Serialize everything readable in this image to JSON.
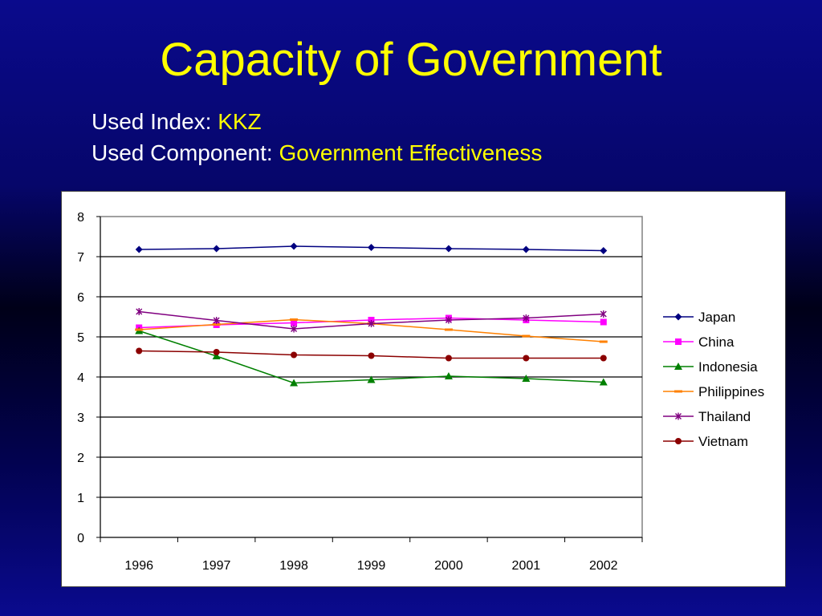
{
  "slide": {
    "title": "Capacity of Government",
    "index_label": "Used Index: ",
    "index_value": "KKZ",
    "component_label": "Used Component: ",
    "component_value": "Government Effectiveness"
  },
  "chart_data": {
    "type": "line",
    "title": "",
    "xlabel": "",
    "ylabel": "",
    "categories": [
      "1996",
      "1997",
      "1998",
      "1999",
      "2000",
      "2001",
      "2002"
    ],
    "ylim": [
      0,
      8
    ],
    "yticks": [
      0,
      1,
      2,
      3,
      4,
      5,
      6,
      7,
      8
    ],
    "grid": true,
    "legend_position": "right",
    "series": [
      {
        "name": "Japan",
        "color": "#000080",
        "marker": "diamond",
        "values": [
          7.18,
          7.2,
          7.26,
          7.23,
          7.2,
          7.18,
          7.15
        ]
      },
      {
        "name": "China",
        "color": "#ff00ff",
        "marker": "square",
        "values": [
          5.23,
          5.3,
          5.35,
          5.42,
          5.47,
          5.42,
          5.37
        ]
      },
      {
        "name": "Indonesia",
        "color": "#008000",
        "marker": "triangle",
        "values": [
          5.15,
          4.52,
          3.85,
          3.93,
          4.02,
          3.96,
          3.87
        ]
      },
      {
        "name": "Philippines",
        "color": "#ff8000",
        "marker": "dash",
        "values": [
          5.18,
          5.31,
          5.43,
          5.33,
          5.18,
          5.02,
          4.88
        ]
      },
      {
        "name": "Thailand",
        "color": "#800080",
        "marker": "star",
        "values": [
          5.63,
          5.41,
          5.2,
          5.33,
          5.42,
          5.47,
          5.57
        ]
      },
      {
        "name": "Vietnam",
        "color": "#8b0000",
        "marker": "circle",
        "values": [
          4.65,
          4.62,
          4.55,
          4.53,
          4.47,
          4.47,
          4.47
        ]
      }
    ]
  }
}
